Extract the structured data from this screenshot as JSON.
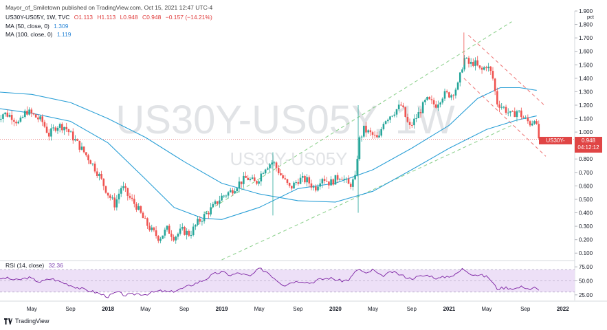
{
  "header": {
    "publisher": "Mayor_of_Smiletown published on TradingView.com, Oct 15, 2021 12:47 UTC-4",
    "symbol": "US30Y-US05Y, 1W, TVC",
    "open": "O1.113",
    "high": "H1.113",
    "low": "L0.948",
    "close": "C0.948",
    "change": "−0.157 (−14.21%)",
    "ma50_label": "MA (50, close, 0)",
    "ma50_value": "1.309",
    "ma100_label": "MA (100, close, 0)",
    "ma100_value": "1.119",
    "rsi_label": "RSI (14, close)",
    "rsi_value": "32.36"
  },
  "watermark": {
    "main": "US30Y-US05Y, 1W",
    "sub": "US30Y-US05Y"
  },
  "price_tag": {
    "symbol": "US30Y-US05Y",
    "value": "0.948",
    "countdown": "04:12:12"
  },
  "logo_text": "TradingView",
  "colors": {
    "up": "#26a69a",
    "down": "#ef5350",
    "ma": "#2a9fd6",
    "rsi": "#7b1fa2",
    "rsi_band": "#ede0f7",
    "up_channel": "#8fd18f",
    "down_channel": "#ef7c7c",
    "last_price": "#e04545"
  },
  "chart_data": {
    "type": "candlestick",
    "timeframe": "1W",
    "price_axis": {
      "min": 0.05,
      "max": 1.9,
      "ticks": [
        "1.900",
        "1.800",
        "1.700",
        "1.600",
        "1.500",
        "1.400",
        "1.300",
        "1.200",
        "1.100",
        "1.000",
        "0.900",
        "0.800",
        "0.700",
        "0.600",
        "0.500",
        "0.400",
        "0.300",
        "0.200",
        "0.100"
      ],
      "unit": "pct"
    },
    "time_axis": {
      "labels": [
        "May",
        "Sep",
        "2018",
        "May",
        "Sep",
        "2019",
        "May",
        "Sep",
        "2020",
        "May",
        "Sep",
        "2021",
        "May",
        "Sep",
        "2022"
      ],
      "label_dates": [
        2017.33,
        2017.67,
        2018.0,
        2018.33,
        2018.67,
        2019.0,
        2019.33,
        2019.67,
        2020.0,
        2020.33,
        2020.67,
        2021.0,
        2021.33,
        2021.67,
        2022.0
      ],
      "range": [
        2017.05,
        2022.08
      ]
    },
    "price_path": [
      [
        2017.0,
        1.08
      ],
      [
        2017.08,
        1.14
      ],
      [
        2017.15,
        1.12
      ],
      [
        2017.22,
        1.06
      ],
      [
        2017.28,
        1.16
      ],
      [
        2017.35,
        1.12
      ],
      [
        2017.42,
        1.08
      ],
      [
        2017.48,
        0.98
      ],
      [
        2017.55,
        1.05
      ],
      [
        2017.62,
        1.04
      ],
      [
        2017.7,
        0.95
      ],
      [
        2017.78,
        0.86
      ],
      [
        2017.85,
        0.78
      ],
      [
        2017.92,
        0.68
      ],
      [
        2018.0,
        0.54
      ],
      [
        2018.06,
        0.46
      ],
      [
        2018.12,
        0.6
      ],
      [
        2018.18,
        0.52
      ],
      [
        2018.25,
        0.45
      ],
      [
        2018.32,
        0.34
      ],
      [
        2018.38,
        0.27
      ],
      [
        2018.45,
        0.21
      ],
      [
        2018.52,
        0.28
      ],
      [
        2018.58,
        0.22
      ],
      [
        2018.65,
        0.27
      ],
      [
        2018.72,
        0.24
      ],
      [
        2018.78,
        0.32
      ],
      [
        2018.85,
        0.38
      ],
      [
        2018.92,
        0.44
      ],
      [
        2019.0,
        0.52
      ],
      [
        2019.08,
        0.56
      ],
      [
        2019.15,
        0.62
      ],
      [
        2019.22,
        0.66
      ],
      [
        2019.3,
        0.62
      ],
      [
        2019.38,
        0.74
      ],
      [
        2019.45,
        0.78
      ],
      [
        2019.52,
        0.68
      ],
      [
        2019.6,
        0.58
      ],
      [
        2019.68,
        0.65
      ],
      [
        2019.75,
        0.64
      ],
      [
        2019.82,
        0.58
      ],
      [
        2019.88,
        0.67
      ],
      [
        2019.95,
        0.62
      ],
      [
        2020.05,
        0.68
      ],
      [
        2020.12,
        0.6
      ],
      [
        2020.18,
        0.66
      ],
      [
        2020.2,
        0.92
      ],
      [
        2020.25,
        1.02
      ],
      [
        2020.32,
        0.98
      ],
      [
        2020.38,
        0.94
      ],
      [
        2020.42,
        1.08
      ],
      [
        2020.5,
        1.14
      ],
      [
        2020.58,
        1.2
      ],
      [
        2020.65,
        1.03
      ],
      [
        2020.72,
        1.12
      ],
      [
        2020.8,
        1.24
      ],
      [
        2020.88,
        1.2
      ],
      [
        2020.95,
        1.28
      ],
      [
        2021.02,
        1.28
      ],
      [
        2021.08,
        1.35
      ],
      [
        2021.13,
        1.55
      ],
      [
        2021.18,
        1.5
      ],
      [
        2021.22,
        1.52
      ],
      [
        2021.28,
        1.45
      ],
      [
        2021.33,
        1.5
      ],
      [
        2021.38,
        1.42
      ],
      [
        2021.42,
        1.22
      ],
      [
        2021.48,
        1.18
      ],
      [
        2021.55,
        1.12
      ],
      [
        2021.6,
        1.16
      ],
      [
        2021.66,
        1.1
      ],
      [
        2021.72,
        1.06
      ],
      [
        2021.75,
        1.11
      ],
      [
        2021.79,
        0.95
      ]
    ],
    "ma50": [
      [
        2017.0,
        1.18
      ],
      [
        2017.33,
        1.14
      ],
      [
        2017.67,
        1.08
      ],
      [
        2018.0,
        0.92
      ],
      [
        2018.33,
        0.65
      ],
      [
        2018.58,
        0.44
      ],
      [
        2018.83,
        0.36
      ],
      [
        2019.0,
        0.35
      ],
      [
        2019.33,
        0.44
      ],
      [
        2019.67,
        0.58
      ],
      [
        2020.0,
        0.62
      ],
      [
        2020.33,
        0.72
      ],
      [
        2020.67,
        0.88
      ],
      [
        2021.0,
        1.05
      ],
      [
        2021.25,
        1.25
      ],
      [
        2021.45,
        1.33
      ],
      [
        2021.62,
        1.33
      ],
      [
        2021.77,
        1.31
      ]
    ],
    "ma100": [
      [
        2017.0,
        1.3
      ],
      [
        2017.33,
        1.28
      ],
      [
        2017.67,
        1.22
      ],
      [
        2018.0,
        1.1
      ],
      [
        2018.33,
        0.96
      ],
      [
        2018.67,
        0.78
      ],
      [
        2019.0,
        0.62
      ],
      [
        2019.33,
        0.54
      ],
      [
        2019.67,
        0.49
      ],
      [
        2020.0,
        0.48
      ],
      [
        2020.33,
        0.56
      ],
      [
        2020.67,
        0.72
      ],
      [
        2021.0,
        0.88
      ],
      [
        2021.33,
        1.02
      ],
      [
        2021.6,
        1.09
      ],
      [
        2021.77,
        1.12
      ]
    ],
    "channel_up": {
      "upper": [
        [
          2018.85,
          0.4
        ],
        [
          2021.55,
          1.82
        ]
      ],
      "lower": [
        [
          2019.0,
          0.05
        ],
        [
          2021.55,
          1.05
        ]
      ]
    },
    "channel_down": {
      "upper": [
        [
          2021.17,
          1.72
        ],
        [
          2021.85,
          1.19
        ]
      ],
      "lower": [
        [
          2021.13,
          1.4
        ],
        [
          2021.85,
          0.82
        ]
      ]
    },
    "last_price": 0.948,
    "rsi": {
      "period": 14,
      "axis_ticks": [
        "75.00",
        "50.00",
        "25.00"
      ],
      "levels": [
        70,
        30
      ],
      "range": [
        15,
        85
      ],
      "path": [
        [
          2017.0,
          52
        ],
        [
          2017.1,
          55
        ],
        [
          2017.2,
          51
        ],
        [
          2017.3,
          56
        ],
        [
          2017.4,
          48
        ],
        [
          2017.5,
          54
        ],
        [
          2017.6,
          47
        ],
        [
          2017.7,
          40
        ],
        [
          2017.78,
          35
        ],
        [
          2017.88,
          30
        ],
        [
          2018.0,
          22
        ],
        [
          2018.08,
          30
        ],
        [
          2018.15,
          24
        ],
        [
          2018.25,
          27
        ],
        [
          2018.33,
          26
        ],
        [
          2018.45,
          32
        ],
        [
          2018.55,
          30
        ],
        [
          2018.65,
          36
        ],
        [
          2018.75,
          44
        ],
        [
          2018.85,
          52
        ],
        [
          2018.93,
          62
        ],
        [
          2019.0,
          66
        ],
        [
          2019.08,
          60
        ],
        [
          2019.15,
          64
        ],
        [
          2019.25,
          58
        ],
        [
          2019.33,
          72
        ],
        [
          2019.4,
          66
        ],
        [
          2019.48,
          52
        ],
        [
          2019.55,
          42
        ],
        [
          2019.62,
          48
        ],
        [
          2019.7,
          50
        ],
        [
          2019.78,
          46
        ],
        [
          2019.85,
          52
        ],
        [
          2019.95,
          55
        ],
        [
          2020.05,
          50
        ],
        [
          2020.12,
          52
        ],
        [
          2020.2,
          72
        ],
        [
          2020.27,
          62
        ],
        [
          2020.33,
          70
        ],
        [
          2020.4,
          58
        ],
        [
          2020.5,
          66
        ],
        [
          2020.58,
          60
        ],
        [
          2020.66,
          54
        ],
        [
          2020.74,
          58
        ],
        [
          2020.82,
          60
        ],
        [
          2020.9,
          54
        ],
        [
          2020.98,
          58
        ],
        [
          2021.05,
          60
        ],
        [
          2021.12,
          72
        ],
        [
          2021.2,
          62
        ],
        [
          2021.28,
          60
        ],
        [
          2021.35,
          56
        ],
        [
          2021.42,
          36
        ],
        [
          2021.5,
          38
        ],
        [
          2021.58,
          36
        ],
        [
          2021.65,
          40
        ],
        [
          2021.72,
          34
        ],
        [
          2021.75,
          38
        ],
        [
          2021.79,
          32.36
        ]
      ]
    }
  }
}
